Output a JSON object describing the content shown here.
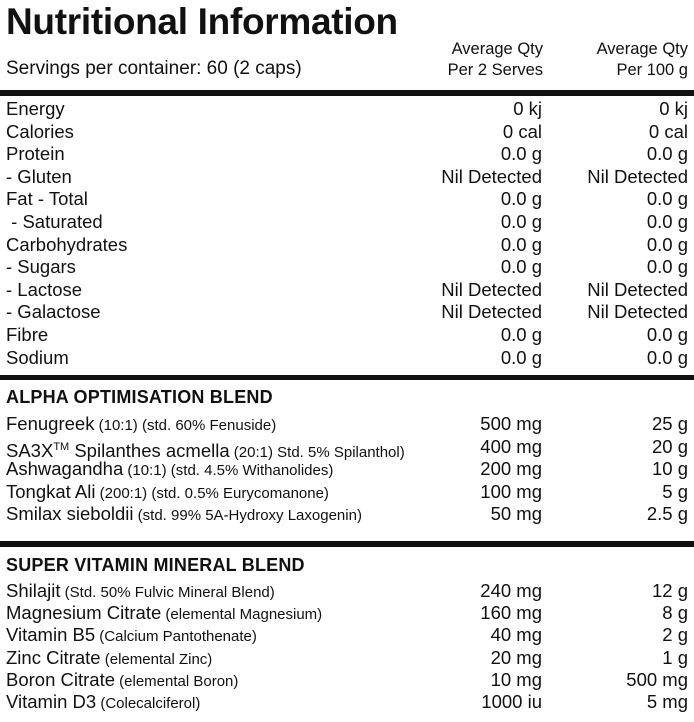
{
  "header": {
    "title": "Nutritional Information",
    "servings": "Servings per container: 60 (2 caps)",
    "col1_line1": "Average Qty",
    "col1_line2": "Per 2 Serves",
    "col2_line1": "Average Qty",
    "col2_line2": "Per 100 g"
  },
  "nutrition": [
    {
      "label": "Energy",
      "per_serve": "0 kj",
      "per_100g": "0 kj"
    },
    {
      "label": "Calories",
      "per_serve": "0 cal",
      "per_100g": "0 cal"
    },
    {
      "label": "Protein",
      "per_serve": "0.0 g",
      "per_100g": "0.0 g"
    },
    {
      "label": "- Gluten",
      "per_serve": "Nil Detected",
      "per_100g": "Nil Detected"
    },
    {
      "label": "Fat - Total",
      "per_serve": "0.0 g",
      "per_100g": "0.0 g"
    },
    {
      "label": " - Saturated",
      "per_serve": "0.0 g",
      "per_100g": "0.0 g"
    },
    {
      "label": "Carbohydrates",
      "per_serve": "0.0 g",
      "per_100g": "0.0 g"
    },
    {
      "label": "- Sugars",
      "per_serve": "0.0 g",
      "per_100g": "0.0 g"
    },
    {
      "label": "- Lactose",
      "per_serve": "Nil Detected",
      "per_100g": "Nil Detected"
    },
    {
      "label": "- Galactose",
      "per_serve": "Nil Detected",
      "per_100g": "Nil Detected"
    },
    {
      "label": "Fibre",
      "per_serve": "0.0 g",
      "per_100g": "0.0 g"
    },
    {
      "label": "Sodium",
      "per_serve": "0.0 g",
      "per_100g": "0.0 g"
    }
  ],
  "alpha_blend": {
    "heading": "ALPHA OPTIMISATION BLEND",
    "items": [
      {
        "name": "Fenugreek",
        "note": " (10:1) (std. 60% Fenuside)",
        "per_serve": "500 mg",
        "per_100g": "25 g"
      },
      {
        "name": "SA3X",
        "sup": "TM",
        "name_rest": " Spilanthes acmella",
        "note": " (20:1) Std. 5% Spilanthol)",
        "per_serve": "400 mg",
        "per_100g": "20 g"
      },
      {
        "name": "Ashwagandha",
        "note": " (10:1) (std. 4.5% Withanolides)",
        "per_serve": "200 mg",
        "per_100g": "10 g"
      },
      {
        "name": "Tongkat Ali",
        "note": " (200:1) (std. 0.5% Eurycomanone)",
        "per_serve": "100 mg",
        "per_100g": "5 g"
      },
      {
        "name": "Smilax sieboldii",
        "note": " (std. 99% 5A-Hydroxy Laxogenin)",
        "per_serve": "50 mg",
        "per_100g": "2.5 g"
      }
    ]
  },
  "vitamin_blend": {
    "heading": "SUPER VITAMIN MINERAL BLEND",
    "items": [
      {
        "name": "Shilajit",
        "note": " (Std. 50% Fulvic Mineral Blend)",
        "per_serve": "240 mg",
        "per_100g": "12 g"
      },
      {
        "name": "Magnesium Citrate",
        "note": " (elemental Magnesium)",
        "per_serve": "160 mg",
        "per_100g": "8 g"
      },
      {
        "name": "Vitamin B5",
        "note": " (Calcium Pantothenate)",
        "per_serve": "40 mg",
        "per_100g": "2 g"
      },
      {
        "name": "Zinc Citrate",
        "note": " (elemental Zinc)",
        "per_serve": "20 mg",
        "per_100g": "1 g"
      },
      {
        "name": "Boron Citrate",
        "note": " (elemental Boron)",
        "per_serve": "10 mg",
        "per_100g": "500 mg"
      },
      {
        "name": "Vitamin D3",
        "note": " (Colecalciferol)",
        "per_serve": "1000 iu",
        "per_100g": "5 mg"
      }
    ]
  }
}
